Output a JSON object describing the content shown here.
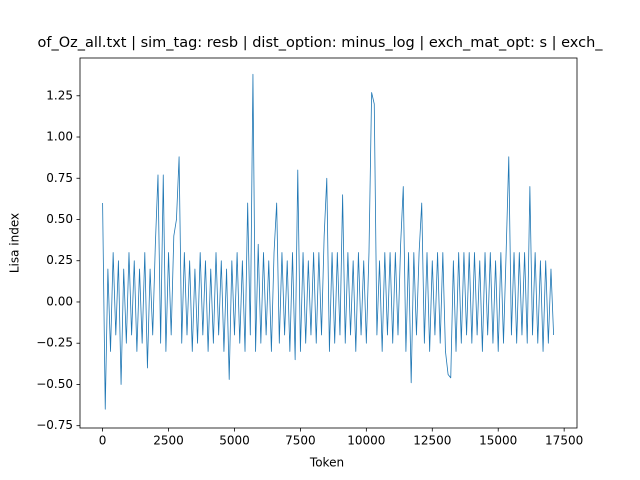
{
  "chart_data": {
    "type": "line",
    "title": "of_Oz_all.txt | sim_tag: resb | dist_option: minus_log | exch_mat_opt: s | exch_",
    "xlabel": "Token",
    "ylabel": "Lisa index",
    "x": [
      0,
      100,
      200,
      300,
      400,
      500,
      600,
      700,
      800,
      900,
      1000,
      1100,
      1200,
      1300,
      1400,
      1500,
      1600,
      1700,
      1800,
      1900,
      2000,
      2100,
      2200,
      2300,
      2400,
      2500,
      2600,
      2700,
      2800,
      2900,
      3000,
      3100,
      3200,
      3300,
      3400,
      3500,
      3600,
      3700,
      3800,
      3900,
      4000,
      4100,
      4200,
      4300,
      4400,
      4500,
      4600,
      4700,
      4800,
      4900,
      5000,
      5100,
      5200,
      5300,
      5400,
      5500,
      5600,
      5700,
      5800,
      5900,
      6000,
      6100,
      6200,
      6300,
      6400,
      6500,
      6600,
      6700,
      6800,
      6900,
      7000,
      7100,
      7200,
      7300,
      7400,
      7500,
      7600,
      7700,
      7800,
      7900,
      8000,
      8100,
      8200,
      8300,
      8400,
      8500,
      8600,
      8700,
      8800,
      8900,
      9000,
      9100,
      9200,
      9300,
      9400,
      9500,
      9600,
      9700,
      9800,
      9900,
      10000,
      10100,
      10200,
      10300,
      10400,
      10500,
      10600,
      10700,
      10800,
      10900,
      11000,
      11100,
      11200,
      11300,
      11400,
      11500,
      11600,
      11700,
      11800,
      11900,
      12000,
      12100,
      12200,
      12300,
      12400,
      12500,
      12600,
      12700,
      12800,
      12900,
      13000,
      13100,
      13200,
      13300,
      13400,
      13500,
      13600,
      13700,
      13800,
      13900,
      14000,
      14100,
      14200,
      14300,
      14400,
      14500,
      14600,
      14700,
      14800,
      14900,
      15000,
      15100,
      15200,
      15300,
      15400,
      15500,
      15600,
      15700,
      15800,
      15900,
      16000,
      16100,
      16200,
      16300,
      16400,
      16500,
      16600,
      16700,
      16800,
      16900,
      17000,
      17100
    ],
    "series": [
      {
        "color": "#1f77b4",
        "values": [
          0.6,
          -0.65,
          0.2,
          -0.3,
          0.3,
          -0.2,
          0.25,
          -0.5,
          0.2,
          -0.25,
          0.3,
          -0.2,
          0.25,
          -0.3,
          0.2,
          -0.25,
          0.3,
          -0.4,
          0.2,
          -0.2,
          0.35,
          0.77,
          -0.25,
          0.77,
          -0.3,
          0.3,
          -0.2,
          0.4,
          0.5,
          0.88,
          -0.25,
          0.3,
          -0.2,
          0.25,
          -0.3,
          0.2,
          -0.25,
          0.3,
          -0.2,
          0.25,
          -0.3,
          0.2,
          -0.25,
          0.3,
          -0.2,
          0.25,
          -0.3,
          0.2,
          -0.47,
          0.25,
          -0.2,
          0.3,
          -0.25,
          0.25,
          -0.3,
          0.6,
          -0.2,
          1.38,
          -0.3,
          0.35,
          -0.25,
          0.3,
          -0.2,
          0.25,
          -0.3,
          0.3,
          0.6,
          -0.25,
          0.3,
          -0.2,
          0.25,
          -0.3,
          0.3,
          -0.35,
          0.8,
          -0.3,
          0.3,
          -0.25,
          0.25,
          -0.2,
          0.3,
          -0.25,
          0.3,
          -0.2,
          0.4,
          0.75,
          -0.3,
          0.3,
          -0.25,
          0.3,
          -0.2,
          0.65,
          -0.25,
          0.3,
          -0.2,
          0.25,
          -0.3,
          0.3,
          -0.2,
          0.25,
          -0.25,
          0.3,
          1.27,
          1.2,
          -0.2,
          0.25,
          -0.3,
          0.3,
          -0.2,
          0.3,
          -0.25,
          0.3,
          -0.2,
          0.35,
          0.7,
          -0.3,
          0.3,
          -0.49,
          0.3,
          -0.2,
          0.3,
          0.6,
          -0.25,
          0.3,
          -0.3,
          0.25,
          -0.2,
          0.3,
          -0.25,
          0.3,
          -0.3,
          -0.44,
          -0.46,
          0.25,
          -0.3,
          0.3,
          -0.25,
          0.3,
          -0.2,
          0.3,
          -0.25,
          0.3,
          -0.2,
          0.25,
          -0.3,
          0.3,
          -0.2,
          0.3,
          -0.25,
          0.25,
          -0.3,
          0.3,
          -0.25,
          0.3,
          0.88,
          -0.2,
          0.3,
          -0.25,
          0.3,
          -0.2,
          0.3,
          -0.25,
          0.7,
          -0.2,
          0.3,
          -0.25,
          0.25,
          -0.3,
          0.25,
          -0.25,
          0.2,
          -0.2
        ]
      }
    ],
    "xlim": [
      -857,
      17987
    ],
    "ylim": [
      -0.764,
      1.479
    ],
    "xticks": [
      0,
      2500,
      5000,
      7500,
      10000,
      12500,
      15000,
      17500
    ],
    "yticks": [
      {
        "value": -0.75,
        "label": "−0.75"
      },
      {
        "value": -0.5,
        "label": "−0.50"
      },
      {
        "value": -0.25,
        "label": "−0.25"
      },
      {
        "value": 0,
        "label": "0.00"
      },
      {
        "value": 0.25,
        "label": "0.25"
      },
      {
        "value": 0.5,
        "label": "0.50"
      },
      {
        "value": 0.75,
        "label": "0.75"
      },
      {
        "value": 1.0,
        "label": "1.00"
      },
      {
        "value": 1.25,
        "label": "1.25"
      }
    ]
  }
}
